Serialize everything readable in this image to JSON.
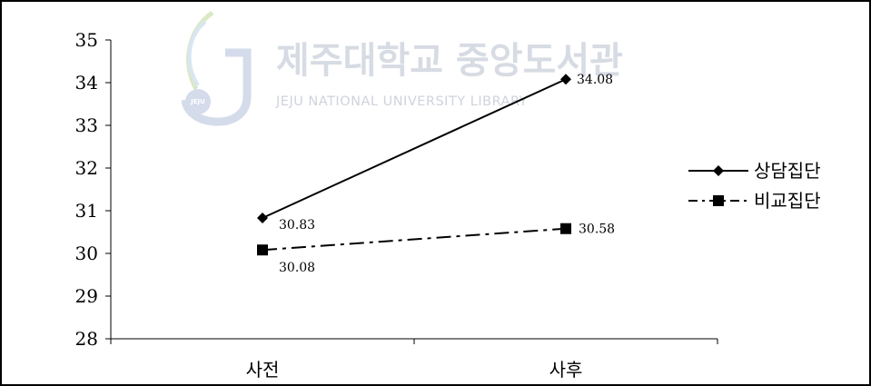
{
  "watermark": {
    "title": "제주대학교 중앙도서관",
    "subtitle": "JEJU NATIONAL UNIVERSITY LIBRARY",
    "badge": "JEJU"
  },
  "chart_data": {
    "type": "line",
    "categories": [
      "사전",
      "사후"
    ],
    "series": [
      {
        "name": "상담집단",
        "values": [
          30.83,
          34.08
        ],
        "data_labels": [
          "30.83",
          "34.08"
        ],
        "marker": "diamond",
        "line_style": "solid"
      },
      {
        "name": "비교집단",
        "values": [
          30.08,
          30.58
        ],
        "data_labels": [
          "30.08",
          "30.58"
        ],
        "marker": "square",
        "line_style": "dash-dot"
      }
    ],
    "ylim": [
      28,
      35
    ],
    "yticks": [
      "28",
      "29",
      "30",
      "31",
      "32",
      "33",
      "34",
      "35"
    ],
    "title": "",
    "xlabel": "",
    "ylabel": "",
    "legend": "right",
    "grid": false,
    "colors": {
      "line": "#000000",
      "marker": "#000000"
    }
  }
}
